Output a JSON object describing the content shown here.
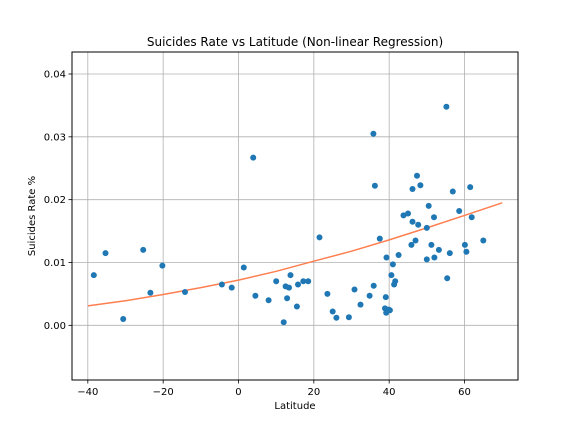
{
  "chart_data": {
    "type": "scatter",
    "title": "Suicides Rate vs Latitude (Non-linear Regression)",
    "xlabel": "Latitude",
    "ylabel": "Suicides Rate %",
    "xlim": [
      -44.2,
      74.2
    ],
    "ylim": [
      -0.0087,
      0.0435
    ],
    "xticks": [
      -40,
      -20,
      0,
      20,
      40,
      60
    ],
    "yticks": [
      0.0,
      0.01,
      0.02,
      0.03,
      0.04
    ],
    "xtick_labels": [
      "−40",
      "−20",
      "0",
      "20",
      "40",
      "60"
    ],
    "ytick_labels": [
      "0.00",
      "0.01",
      "0.02",
      "0.03",
      "0.04"
    ],
    "grid": true,
    "colors": {
      "points": "#1f77b4",
      "fit_line": "#ff7f50",
      "grid": "#b0b0b0"
    },
    "points": [
      [
        -38.4,
        0.008
      ],
      [
        -35.3,
        0.0115
      ],
      [
        -30.6,
        0.001
      ],
      [
        -25.3,
        0.012
      ],
      [
        -23.4,
        0.0052
      ],
      [
        -20.2,
        0.0095
      ],
      [
        -14.2,
        0.0053
      ],
      [
        -4.4,
        0.0065
      ],
      [
        -1.8,
        0.006
      ],
      [
        1.4,
        0.0092
      ],
      [
        3.9,
        0.0267
      ],
      [
        4.5,
        0.0047
      ],
      [
        8.0,
        0.004
      ],
      [
        10.0,
        0.007
      ],
      [
        12.0,
        0.0005
      ],
      [
        12.5,
        0.0062
      ],
      [
        12.9,
        0.0043
      ],
      [
        13.4,
        0.006
      ],
      [
        13.8,
        0.008
      ],
      [
        15.5,
        0.003
      ],
      [
        15.8,
        0.0065
      ],
      [
        17.2,
        0.007
      ],
      [
        18.5,
        0.007
      ],
      [
        21.5,
        0.014
      ],
      [
        23.6,
        0.005
      ],
      [
        25.0,
        0.0022
      ],
      [
        26.0,
        0.0012
      ],
      [
        29.3,
        0.0013
      ],
      [
        30.8,
        0.0057
      ],
      [
        32.4,
        0.0033
      ],
      [
        34.8,
        0.0047
      ],
      [
        35.8,
        0.0305
      ],
      [
        35.9,
        0.0063
      ],
      [
        36.2,
        0.0222
      ],
      [
        37.5,
        0.0138
      ],
      [
        38.9,
        0.0027
      ],
      [
        39.1,
        0.0045
      ],
      [
        39.2,
        0.002
      ],
      [
        39.3,
        0.0108
      ],
      [
        39.9,
        0.0025
      ],
      [
        40.2,
        0.0024
      ],
      [
        40.6,
        0.008
      ],
      [
        41.0,
        0.0097
      ],
      [
        41.3,
        0.0065
      ],
      [
        41.6,
        0.007
      ],
      [
        42.5,
        0.0112
      ],
      [
        43.8,
        0.0175
      ],
      [
        45.0,
        0.0178
      ],
      [
        45.9,
        0.0128
      ],
      [
        46.2,
        0.0217
      ],
      [
        46.2,
        0.0165
      ],
      [
        47.0,
        0.0135
      ],
      [
        47.4,
        0.0238
      ],
      [
        47.7,
        0.016
      ],
      [
        48.3,
        0.0223
      ],
      [
        50.0,
        0.0155
      ],
      [
        50.0,
        0.0105
      ],
      [
        50.5,
        0.019
      ],
      [
        51.2,
        0.0128
      ],
      [
        51.9,
        0.0172
      ],
      [
        52.0,
        0.0108
      ],
      [
        53.2,
        0.012
      ],
      [
        55.2,
        0.0348
      ],
      [
        55.4,
        0.0075
      ],
      [
        56.1,
        0.0115
      ],
      [
        56.9,
        0.0213
      ],
      [
        58.6,
        0.0182
      ],
      [
        60.1,
        0.0128
      ],
      [
        60.5,
        0.0117
      ],
      [
        61.5,
        0.022
      ],
      [
        61.9,
        0.0172
      ],
      [
        65.0,
        0.0135
      ]
    ],
    "fit_curve": [
      [
        -40,
        0.0031
      ],
      [
        -30,
        0.0039
      ],
      [
        -20,
        0.0049
      ],
      [
        -10,
        0.006
      ],
      [
        0,
        0.0072
      ],
      [
        10,
        0.0086
      ],
      [
        20,
        0.0102
      ],
      [
        30,
        0.0118
      ],
      [
        40,
        0.0136
      ],
      [
        50,
        0.0155
      ],
      [
        60,
        0.0175
      ],
      [
        70,
        0.0195
      ]
    ]
  }
}
